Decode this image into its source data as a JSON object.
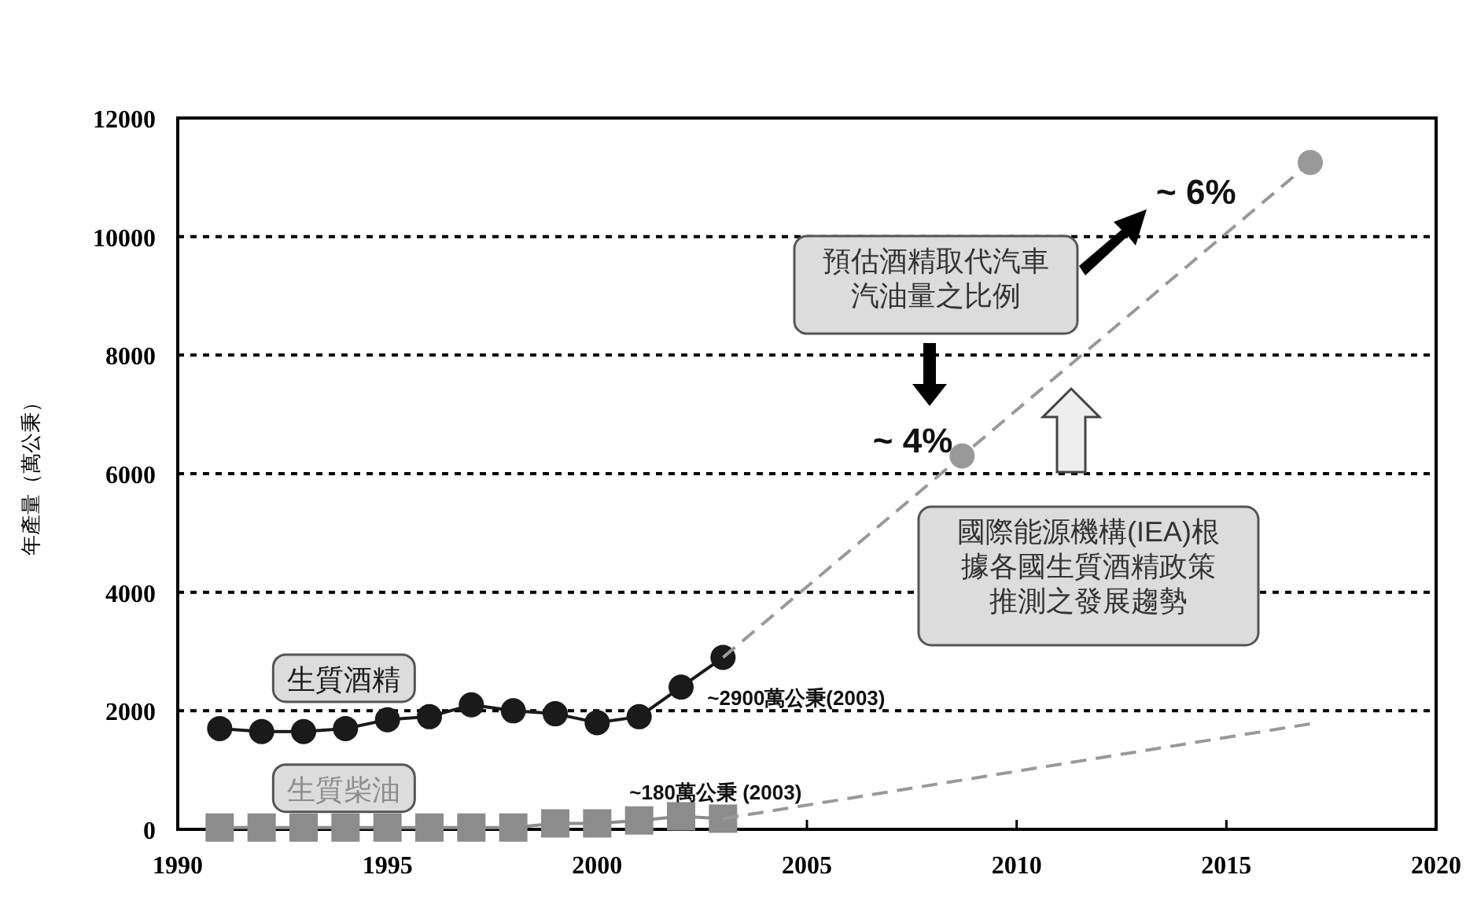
{
  "chart_data": {
    "type": "line",
    "ylabel": "年產量（萬公秉）",
    "xlim": [
      1990,
      2020
    ],
    "xticks": [
      1990,
      1995,
      2000,
      2005,
      2010,
      2015,
      2020
    ],
    "ylim": [
      0,
      12000
    ],
    "yticks": [
      0,
      2000,
      4000,
      6000,
      8000,
      10000,
      12000
    ],
    "grid": "y",
    "series": [
      {
        "name": "生質酒精",
        "color": "#1a1a1a",
        "marker": "circle",
        "line_style": "solid",
        "x": [
          1991,
          1992,
          1993,
          1994,
          1995,
          1996,
          1997,
          1998,
          1999,
          2000,
          2001,
          2002,
          2003
        ],
        "values": [
          1700,
          1650,
          1650,
          1700,
          1850,
          1900,
          2100,
          2000,
          1950,
          1800,
          1900,
          2400,
          2900
        ]
      },
      {
        "name": "生質柴油",
        "color": "#8c8c8c",
        "marker": "square",
        "line_style": "solid",
        "x": [
          1991,
          1992,
          1993,
          1994,
          1995,
          1996,
          1997,
          1998,
          1999,
          2000,
          2001,
          2002,
          2003
        ],
        "values": [
          30,
          30,
          30,
          30,
          30,
          30,
          30,
          30,
          100,
          100,
          150,
          220,
          180
        ]
      },
      {
        "color": "#999999",
        "marker": "none",
        "line_style": "dashed",
        "x": [
          2003,
          2008.7,
          2017
        ],
        "values": [
          2900,
          6300,
          11250
        ]
      },
      {
        "type": "scatter",
        "color": "#999999",
        "marker": "circle",
        "x": [
          2008.7,
          2017
        ],
        "values": [
          6300,
          11250
        ]
      },
      {
        "color": "#999999",
        "marker": "none",
        "line_style": "dashed",
        "x": [
          2003,
          2017
        ],
        "values": [
          180,
          1780
        ]
      }
    ],
    "annotations": [
      {
        "text": "~2900萬公秉(2003)",
        "x": 2003,
        "y": 2900
      },
      {
        "text": "~180萬公秉 (2003)",
        "x": 2003,
        "y": 180
      },
      "預估酒精取代汽車汽油量之比例",
      {
        "text": "~ 4%",
        "x": 2008.7,
        "y": 6300
      },
      {
        "text": "~ 6%",
        "x": 2017,
        "y": 11250
      },
      "國際能源機構(IEA)根據各國生質酒精政策推測之發展趨勢"
    ]
  }
}
